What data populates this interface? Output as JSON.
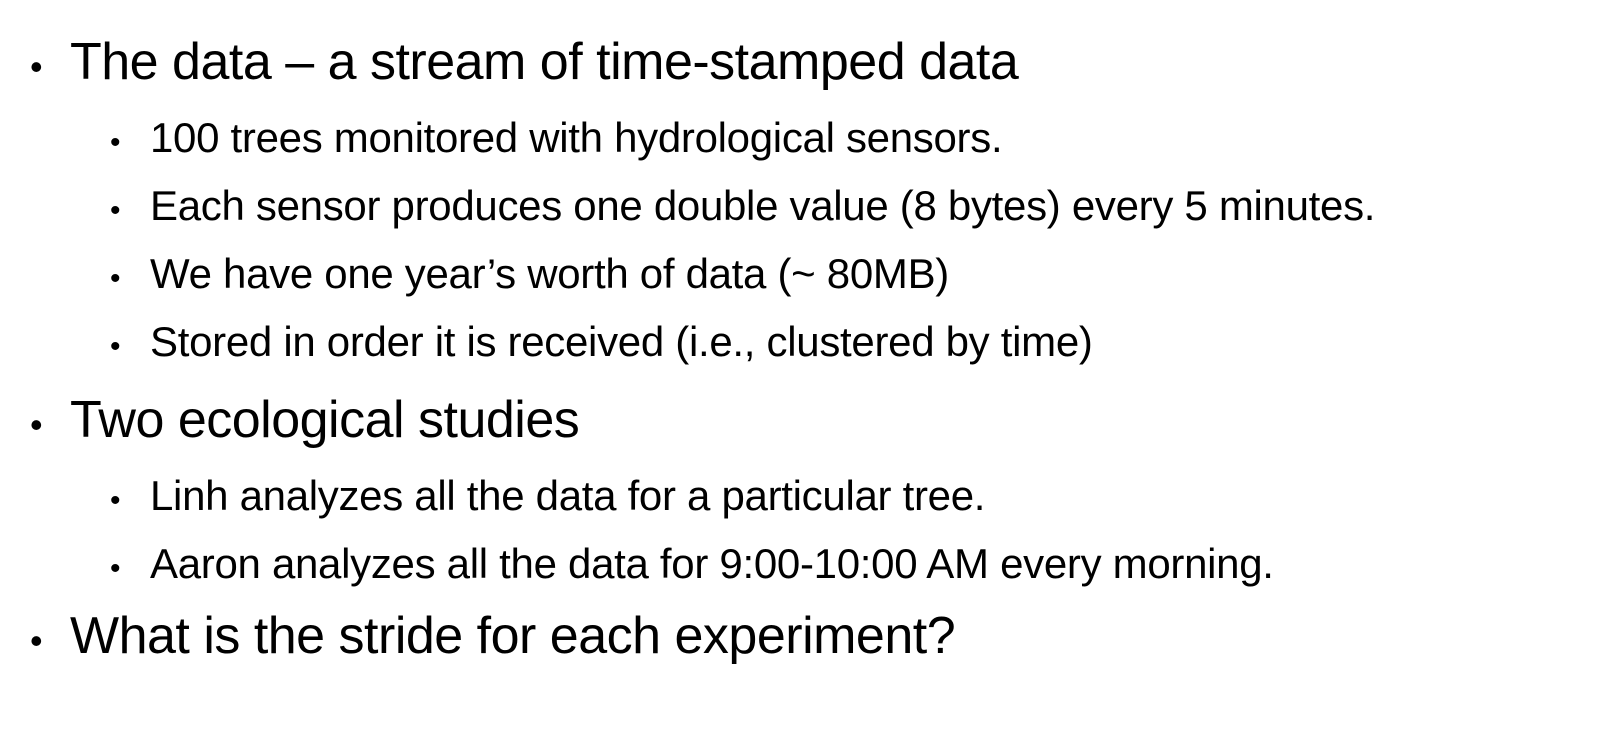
{
  "bullet_glyph": "•",
  "items": [
    {
      "level": 1,
      "text": "The data – a stream of time-stamped data"
    },
    {
      "level": 2,
      "text": "100 trees monitored with hydrological sensors."
    },
    {
      "level": 2,
      "text": "Each sensor produces one double value (8 bytes) every 5 minutes."
    },
    {
      "level": 2,
      "text": "We have one year’s worth of data (~ 80MB)"
    },
    {
      "level": 2,
      "text": "Stored in order it is received (i.e., clustered by time)"
    },
    {
      "level": 1,
      "text": "Two ecological studies"
    },
    {
      "level": 2,
      "text": "Linh analyzes all the data for a particular tree."
    },
    {
      "level": 2,
      "text": "Aaron analyzes all the data for 9:00-10:00 AM every morning."
    },
    {
      "level": 1,
      "text": "What is the stride for each experiment?"
    }
  ]
}
